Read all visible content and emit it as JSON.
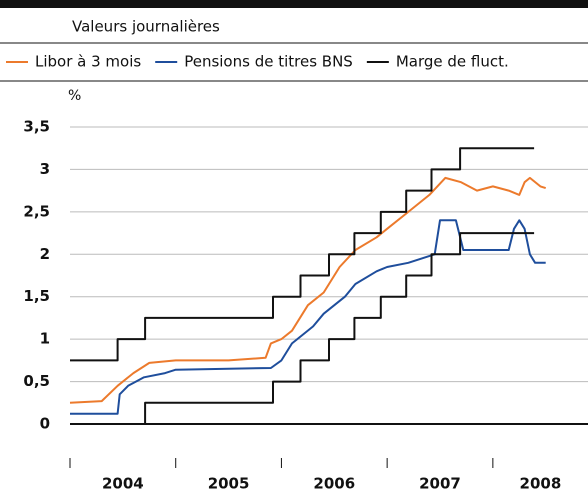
{
  "chart_data": {
    "type": "line",
    "subtitle": "Valeurs journalières",
    "y_unit": "%",
    "xlim": [
      2004,
      2008.9
    ],
    "ylim": [
      0,
      3.5
    ],
    "yticks": [
      0,
      {
        "value": 0.5,
        "label": "0,5"
      },
      1,
      {
        "value": 1.5,
        "label": "1,5"
      },
      2,
      {
        "value": 2.5,
        "label": "2,5"
      },
      3,
      {
        "value": 3.5,
        "label": "3,5"
      }
    ],
    "xticks": [
      {
        "value": 2004.5,
        "label": "2004"
      },
      {
        "value": 2005.5,
        "label": "2005"
      },
      {
        "value": 2006.5,
        "label": "2006"
      },
      {
        "value": 2007.5,
        "label": "2007"
      },
      {
        "value": 2008.45,
        "label": "2008"
      }
    ],
    "xminor": [
      2004,
      2005,
      2006,
      2007,
      2008
    ],
    "grid": true,
    "series": [
      {
        "name": "Libor à 3 mois",
        "color": "#ec7a2c",
        "x": [
          2004.0,
          2004.3,
          2004.45,
          2004.6,
          2004.75,
          2005.0,
          2005.5,
          2005.85,
          2005.9,
          2006.0,
          2006.1,
          2006.25,
          2006.4,
          2006.55,
          2006.7,
          2006.9,
          2007.0,
          2007.2,
          2007.4,
          2007.55,
          2007.7,
          2007.85,
          2008.0,
          2008.15,
          2008.25,
          2008.3,
          2008.35,
          2008.45,
          2008.5
        ],
        "values": [
          0.25,
          0.27,
          0.45,
          0.6,
          0.72,
          0.75,
          0.75,
          0.78,
          0.95,
          1.0,
          1.1,
          1.4,
          1.55,
          1.85,
          2.05,
          2.2,
          2.3,
          2.5,
          2.7,
          2.9,
          2.85,
          2.75,
          2.8,
          2.75,
          2.7,
          2.85,
          2.9,
          2.8,
          2.78
        ]
      },
      {
        "name": "Pensions de titres BNS",
        "color": "#1f4e9c",
        "x": [
          2004.0,
          2004.45,
          2004.47,
          2004.55,
          2004.7,
          2004.9,
          2005.0,
          2005.9,
          2006.0,
          2006.1,
          2006.15,
          2006.3,
          2006.4,
          2006.6,
          2006.7,
          2006.9,
          2007.0,
          2007.2,
          2007.45,
          2007.5,
          2007.65,
          2007.72,
          2008.0,
          2008.15,
          2008.2,
          2008.25,
          2008.3,
          2008.35,
          2008.4,
          2008.5
        ],
        "values": [
          0.12,
          0.12,
          0.35,
          0.45,
          0.55,
          0.6,
          0.64,
          0.66,
          0.75,
          0.95,
          1.0,
          1.15,
          1.3,
          1.5,
          1.65,
          1.8,
          1.85,
          1.9,
          2.0,
          2.4,
          2.4,
          2.05,
          2.05,
          2.05,
          2.3,
          2.4,
          2.3,
          2.0,
          1.9,
          1.9
        ]
      },
      {
        "name": "Marge de fluct.",
        "color": "#111111",
        "x": [
          2004.0,
          2004.45,
          2004.45,
          2004.71,
          2004.71,
          2005.92,
          2005.92,
          2006.18,
          2006.18,
          2006.45,
          2006.45,
          2006.69,
          2006.69,
          2006.94,
          2006.94,
          2007.18,
          2007.18,
          2007.42,
          2007.42,
          2007.69,
          2007.69,
          2008.39,
          null,
          2004.0,
          2004.71,
          2004.71,
          2005.92,
          2005.92,
          2006.18,
          2006.18,
          2006.45,
          2006.45,
          2006.69,
          2006.69,
          2006.94,
          2006.94,
          2007.18,
          2007.18,
          2007.42,
          2007.42,
          2007.69,
          2007.69,
          2008.39
        ],
        "values": [
          0.75,
          0.75,
          1.0,
          1.0,
          1.25,
          1.25,
          1.5,
          1.5,
          1.75,
          1.75,
          2.0,
          2.0,
          2.25,
          2.25,
          2.5,
          2.5,
          2.75,
          2.75,
          3.0,
          3.0,
          3.25,
          3.25,
          null,
          0,
          0,
          0.25,
          0.25,
          0.5,
          0.5,
          0.75,
          0.75,
          1.0,
          1.0,
          1.25,
          1.25,
          1.5,
          1.5,
          1.75,
          1.75,
          2.0,
          2.0,
          2.25,
          2.25
        ]
      }
    ]
  }
}
